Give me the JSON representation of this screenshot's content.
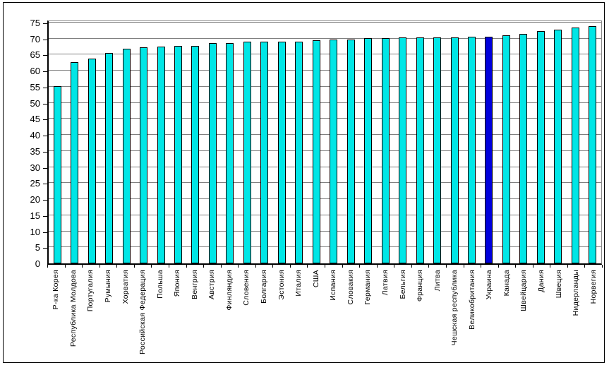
{
  "chart_data": {
    "type": "bar",
    "title": "",
    "xlabel": "",
    "ylabel": "",
    "categories": [
      "Р-ка Корея",
      "Республика Молдова",
      "Португалия",
      "Румыния",
      "Хорватия",
      "Российская Федерация",
      "Польша",
      "Япония",
      "Венгрия",
      "Австрия",
      "Финляндия",
      "Словения",
      "Болгария",
      "Эстония",
      "Италия",
      "США",
      "Испания",
      "Словакия",
      "Германия",
      "Латвия",
      "Бельгия",
      "Франция",
      "Литва",
      "Чешская республика",
      "Великобритания",
      "Украина",
      "Канада",
      "Швейцария",
      "Дания",
      "Швеция",
      "Нидерланды",
      "Норвегия"
    ],
    "values": [
      55.2,
      62.6,
      63.8,
      65.5,
      66.8,
      67.2,
      67.5,
      67.8,
      67.8,
      68.6,
      68.7,
      69.0,
      69.0,
      69.1,
      69.1,
      69.5,
      69.7,
      69.8,
      70.2,
      70.2,
      70.3,
      70.3,
      70.3,
      70.4,
      70.5,
      70.5,
      71.0,
      71.4,
      72.3,
      72.9,
      73.4,
      73.8
    ],
    "highlight_category": "Украина",
    "highlight_index": 25,
    "ylim": [
      0,
      75
    ],
    "ytick_step": 5,
    "ytick_labels": [
      "0",
      "5",
      "10",
      "15",
      "20",
      "25",
      "30",
      "35",
      "40",
      "45",
      "50",
      "55",
      "60",
      "65",
      "70",
      "75"
    ],
    "grid": true,
    "legend": false,
    "bar_color": "#00E6E6",
    "highlight_color": "#0000DC",
    "gridline_color": "#808080",
    "axis_color": "#000000",
    "plot_border_color": "#888888"
  }
}
